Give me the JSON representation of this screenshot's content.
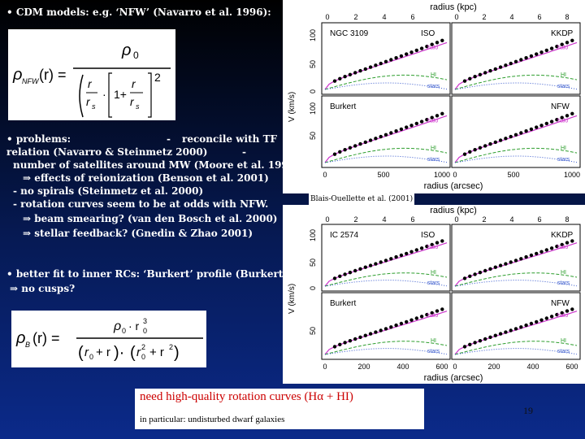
{
  "intro": {
    "line": "• CDM models: e.g. ‘NFW’   (Navarro et al. 1996):"
  },
  "problems": {
    "heading": "• problems:",
    "dash": "-",
    "tf": "reconcile with TF",
    "l2": "relation (Navarro & Steinmetz 2000)",
    "l2dash": "-",
    "l3": "number of satellites around MW (Moore et al. 1999)",
    "l4": "⇒ effects of reionization (Benson et al. 2001)",
    "l5": "- no spirals (Steinmetz et al. 2000)",
    "l6": "- rotation curves seem to be at odds with NFW.",
    "l7": "⇒ beam smearing? (van den Bosch et al. 2000)",
    "l8": "⇒ stellar feedback? (Gnedin & Zhao 2001)"
  },
  "burkert": {
    "l1": "• better fit to inner RCs: ‘Burkert’ profile (Burkert 1995)",
    "l2": "⇒ no cusps?"
  },
  "callout": {
    "main": "need high-quality rotation curves (Hα + HI)",
    "sub": "in particular: undisturbed dwarf galaxies"
  },
  "credit": "Blais-Ouellette et al. (2001)",
  "page_number": "19",
  "figures": [
    {
      "galaxy": "NGC 3109",
      "top_axis_label": "radius (kpc)",
      "top_ticks": [
        "0",
        "2",
        "4",
        "6",
        "8"
      ],
      "bottom_axis_label": "radius (arcsec)",
      "bottom_ticks": [
        "0",
        "500",
        "1000",
        "0",
        "500",
        "1000"
      ],
      "y_label": "V (km/s)",
      "y_ticks": [
        "100",
        "50",
        "0"
      ],
      "panel_labels": [
        "ISO",
        "KKDP",
        "Burkert",
        "NFW"
      ],
      "curve_labels": [
        "halo",
        "HI",
        "stars"
      ]
    },
    {
      "galaxy": "IC 2574",
      "top_axis_label": "radius (kpc)",
      "top_ticks": [
        "0",
        "2",
        "4",
        "6",
        "8"
      ],
      "bottom_axis_label": "radius (arcsec)",
      "bottom_ticks": [
        "0",
        "200",
        "400",
        "600",
        "0",
        "200",
        "400",
        "600"
      ],
      "y_label": "V (km/s)",
      "y_ticks": [
        "100",
        "50",
        "0"
      ],
      "panel_labels": [
        "ISO",
        "KKDP",
        "Burkert",
        "NFW"
      ],
      "curve_labels": [
        "halo",
        "HI",
        "stars"
      ]
    }
  ],
  "colors": {
    "background_top": "#000000",
    "background_bottom": "#0b2a8a",
    "accent": "#cc0000",
    "halo": "#cc33cc",
    "hi": "#2e9e2e"
  }
}
